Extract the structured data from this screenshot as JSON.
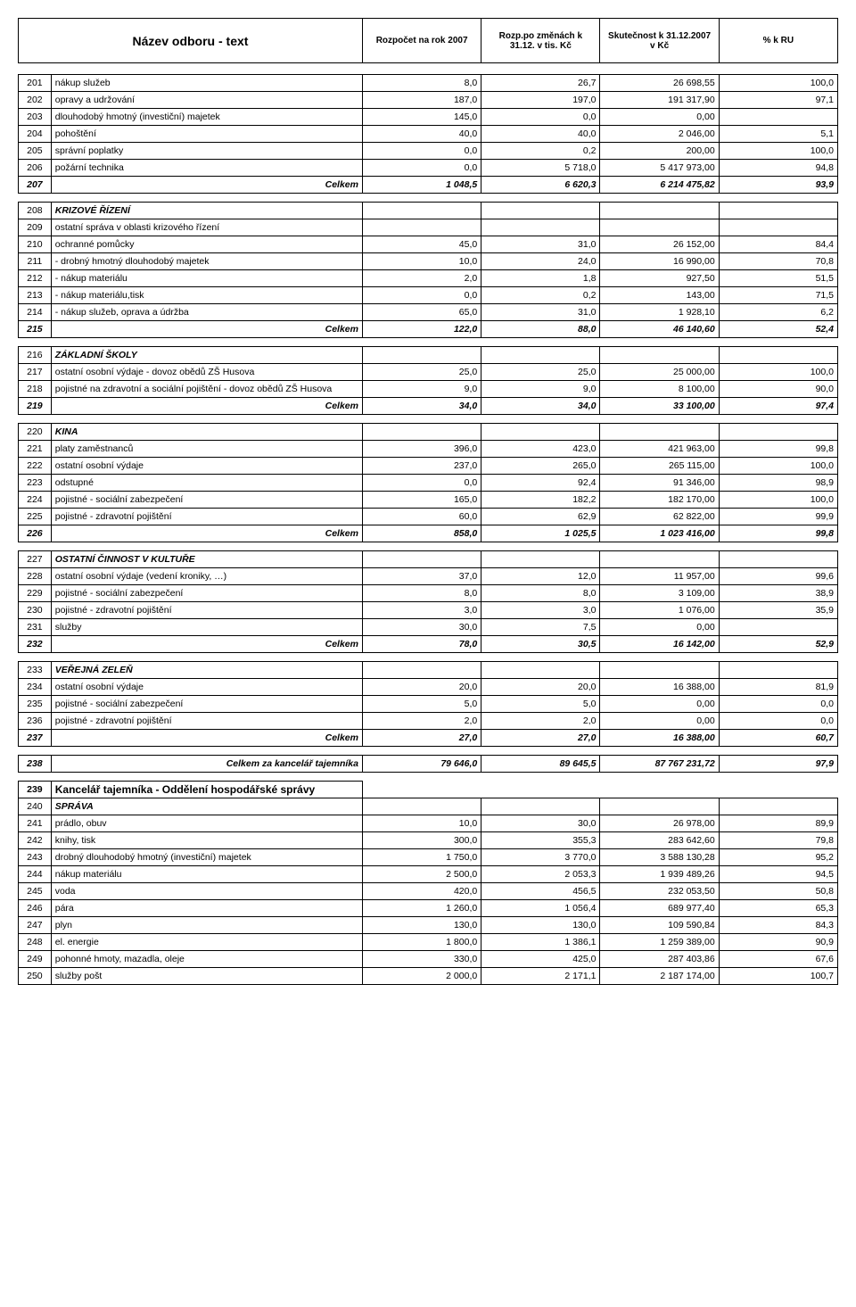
{
  "header": {
    "title": "Název odboru - text",
    "col1": "Rozpočet na rok 2007",
    "col2": "Rozp.po změnách k 31.12. v tis. Kč",
    "col3": "Skutečnost k 31.12.2007 v Kč",
    "col4": "% k RU"
  },
  "sections": [
    {
      "rows": [
        {
          "n": "201",
          "t": "nákup služeb",
          "v": [
            "8,0",
            "26,7",
            "26 698,55",
            "100,0"
          ]
        },
        {
          "n": "202",
          "t": "opravy a udržování",
          "v": [
            "187,0",
            "197,0",
            "191 317,90",
            "97,1"
          ]
        },
        {
          "n": "203",
          "t": "dlouhodobý hmotný (investiční) majetek",
          "v": [
            "145,0",
            "0,0",
            "0,00",
            ""
          ]
        },
        {
          "n": "204",
          "t": "pohoštění",
          "v": [
            "40,0",
            "40,0",
            "2 046,00",
            "5,1"
          ]
        },
        {
          "n": "205",
          "t": "správní poplatky",
          "v": [
            "0,0",
            "0,2",
            "200,00",
            "100,0"
          ]
        },
        {
          "n": "206",
          "t": "požární technika",
          "v": [
            "0,0",
            "5 718,0",
            "5 417 973,00",
            "94,8"
          ]
        }
      ],
      "total": {
        "n": "207",
        "t": "Celkem",
        "v": [
          "1 048,5",
          "6 620,3",
          "6 214 475,82",
          "93,9"
        ]
      }
    },
    {
      "title": {
        "n": "208",
        "t": "KRIZOVÉ ŘÍZENÍ"
      },
      "rows": [
        {
          "n": "209",
          "t": "ostatní správa v oblasti krizového řízení",
          "v": [
            "",
            "",
            "",
            ""
          ]
        },
        {
          "n": "210",
          "t": "ochranné pomůcky",
          "v": [
            "45,0",
            "31,0",
            "26 152,00",
            "84,4"
          ]
        },
        {
          "n": "211",
          "t": "   - drobný hmotný dlouhodobý majetek",
          "v": [
            "10,0",
            "24,0",
            "16 990,00",
            "70,8"
          ]
        },
        {
          "n": "212",
          "t": "   - nákup materiálu",
          "v": [
            "2,0",
            "1,8",
            "927,50",
            "51,5"
          ]
        },
        {
          "n": "213",
          "t": "   - nákup materiálu,tisk",
          "v": [
            "0,0",
            "0,2",
            "143,00",
            "71,5"
          ]
        },
        {
          "n": "214",
          "t": "   - nákup služeb, oprava a údržba",
          "v": [
            "65,0",
            "31,0",
            "1 928,10",
            "6,2"
          ]
        }
      ],
      "total": {
        "n": "215",
        "t": "Celkem",
        "v": [
          "122,0",
          "88,0",
          "46 140,60",
          "52,4"
        ]
      }
    },
    {
      "title": {
        "n": "216",
        "t": "ZÁKLADNÍ ŠKOLY"
      },
      "rows": [
        {
          "n": "217",
          "t": "ostatní osobní výdaje - dovoz obědů ZŠ Husova",
          "v": [
            "25,0",
            "25,0",
            "25 000,00",
            "100,0"
          ]
        },
        {
          "n": "218",
          "t": "pojistné na zdravotní a sociální pojištění - dovoz obědů ZŠ Husova",
          "v": [
            "9,0",
            "9,0",
            "8 100,00",
            "90,0"
          ]
        }
      ],
      "total": {
        "n": "219",
        "t": "Celkem",
        "v": [
          "34,0",
          "34,0",
          "33 100,00",
          "97,4"
        ]
      }
    },
    {
      "title": {
        "n": "220",
        "t": "KINA"
      },
      "rows": [
        {
          "n": "221",
          "t": "platy zaměstnanců",
          "v": [
            "396,0",
            "423,0",
            "421 963,00",
            "99,8"
          ]
        },
        {
          "n": "222",
          "t": "ostatní osobní výdaje",
          "v": [
            "237,0",
            "265,0",
            "265 115,00",
            "100,0"
          ]
        },
        {
          "n": "223",
          "t": "odstupné",
          "v": [
            "0,0",
            "92,4",
            "91 346,00",
            "98,9"
          ]
        },
        {
          "n": "224",
          "t": "pojistné - sociální zabezpečení",
          "v": [
            "165,0",
            "182,2",
            "182 170,00",
            "100,0"
          ]
        },
        {
          "n": "225",
          "t": "pojistné - zdravotní pojištění",
          "v": [
            "60,0",
            "62,9",
            "62 822,00",
            "99,9"
          ]
        }
      ],
      "total": {
        "n": "226",
        "t": "Celkem",
        "v": [
          "858,0",
          "1 025,5",
          "1 023 416,00",
          "99,8"
        ]
      }
    },
    {
      "title": {
        "n": "227",
        "t": "OSTATNÍ ČINNOST V KULTUŘE"
      },
      "rows": [
        {
          "n": "228",
          "t": "ostatní osobní výdaje (vedení kroniky, …)",
          "v": [
            "37,0",
            "12,0",
            "11 957,00",
            "99,6"
          ]
        },
        {
          "n": "229",
          "t": "pojistné - sociální zabezpečení",
          "v": [
            "8,0",
            "8,0",
            "3 109,00",
            "38,9"
          ]
        },
        {
          "n": "230",
          "t": "pojistné - zdravotní pojištění",
          "v": [
            "3,0",
            "3,0",
            "1 076,00",
            "35,9"
          ]
        },
        {
          "n": "231",
          "t": "služby",
          "v": [
            "30,0",
            "7,5",
            "0,00",
            ""
          ]
        }
      ],
      "total": {
        "n": "232",
        "t": "Celkem",
        "v": [
          "78,0",
          "30,5",
          "16 142,00",
          "52,9"
        ]
      }
    },
    {
      "title": {
        "n": "233",
        "t": "VEŘEJNÁ ZELEŇ"
      },
      "rows": [
        {
          "n": "234",
          "t": "ostatní osobní výdaje",
          "v": [
            "20,0",
            "20,0",
            "16 388,00",
            "81,9"
          ]
        },
        {
          "n": "235",
          "t": "pojistné - sociální zabezpečení",
          "v": [
            "5,0",
            "5,0",
            "0,00",
            "0,0"
          ]
        },
        {
          "n": "236",
          "t": "pojistné - zdravotní pojištění",
          "v": [
            "2,0",
            "2,0",
            "0,00",
            "0,0"
          ]
        }
      ],
      "total": {
        "n": "237",
        "t": "Celkem",
        "v": [
          "27,0",
          "27,0",
          "16 388,00",
          "60,7"
        ]
      }
    }
  ],
  "grand_total": {
    "n": "238",
    "t": "Celkem za kancelář tajemníka",
    "v": [
      "79 646,0",
      "89 645,5",
      "87 767 231,72",
      "97,9"
    ]
  },
  "dept2": {
    "title": {
      "n": "239",
      "t": "Kancelář tajemníka - Oddělení hospodářské správy"
    },
    "subtitle": {
      "n": "240",
      "t": "SPRÁVA"
    },
    "rows": [
      {
        "n": "241",
        "t": "prádlo, obuv",
        "v": [
          "10,0",
          "30,0",
          "26 978,00",
          "89,9"
        ]
      },
      {
        "n": "242",
        "t": "knihy, tisk",
        "v": [
          "300,0",
          "355,3",
          "283 642,60",
          "79,8"
        ]
      },
      {
        "n": "243",
        "t": "drobný dlouhodobý hmotný (investiční) majetek",
        "v": [
          "1 750,0",
          "3 770,0",
          "3 588 130,28",
          "95,2"
        ]
      },
      {
        "n": "244",
        "t": "nákup materiálu",
        "v": [
          "2 500,0",
          "2 053,3",
          "1 939 489,26",
          "94,5"
        ]
      },
      {
        "n": "245",
        "t": "voda",
        "v": [
          "420,0",
          "456,5",
          "232 053,50",
          "50,8"
        ]
      },
      {
        "n": "246",
        "t": "pára",
        "v": [
          "1 260,0",
          "1 056,4",
          "689 977,40",
          "65,3"
        ]
      },
      {
        "n": "247",
        "t": "plyn",
        "v": [
          "130,0",
          "130,0",
          "109 590,84",
          "84,3"
        ]
      },
      {
        "n": "248",
        "t": "el. energie",
        "v": [
          "1 800,0",
          "1 386,1",
          "1 259 389,00",
          "90,9"
        ]
      },
      {
        "n": "249",
        "t": "pohonné hmoty, mazadla, oleje",
        "v": [
          "330,0",
          "425,0",
          "287 403,86",
          "67,6"
        ]
      },
      {
        "n": "250",
        "t": "služby pošt",
        "v": [
          "2 000,0",
          "2 171,1",
          "2 187 174,00",
          "100,7"
        ]
      }
    ]
  },
  "styling": {
    "font_family": "Arial",
    "base_font_size": 11,
    "border_color": "#000000",
    "background_color": "#ffffff",
    "column_widths_pct": [
      4,
      38,
      14.5,
      14.5,
      14.5,
      14.5
    ]
  }
}
